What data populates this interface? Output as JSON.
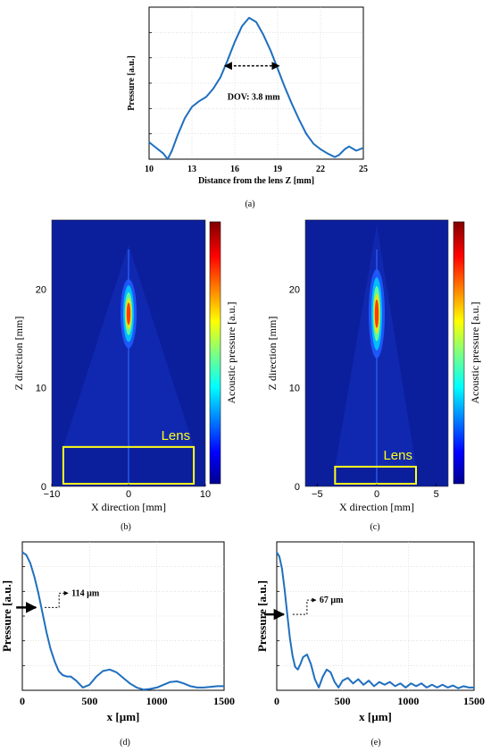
{
  "panel_labels": {
    "a": "(a)",
    "b": "(b)",
    "c": "(c)",
    "d": "(d)",
    "e": "(e)"
  },
  "colors": {
    "curve": "#1f6fbf",
    "map_background": "#0b1e9c",
    "lens_box": "#ffff1a",
    "grid": "#cfcfcf"
  },
  "chart_data": [
    {
      "id": "a",
      "type": "line",
      "xlabel": "Distance from the lens Z [mm]",
      "ylabel": "Pressure [a.u.]",
      "xlim": [
        10,
        25
      ],
      "ylim": [
        0,
        1
      ],
      "xticks": [
        "10",
        "13",
        "16",
        "19",
        "22",
        "25"
      ],
      "grid": true,
      "annotation": {
        "text": "DOV: 3.8 mm",
        "arrow_from_x": 15.3,
        "arrow_to_x": 19.1,
        "arrow_y": 0.66
      },
      "series": [
        {
          "x": [
            10,
            10.5,
            11,
            11.3,
            11.6,
            12,
            12.5,
            13,
            13.5,
            14,
            14.5,
            15,
            15.5,
            16,
            16.5,
            17,
            17.5,
            18,
            18.5,
            19,
            19.5,
            20,
            20.5,
            21,
            21.5,
            22,
            22.5,
            23,
            23.3,
            23.7,
            24,
            24.5,
            25
          ],
          "y": [
            0.12,
            0.08,
            0.04,
            0.0,
            0.06,
            0.17,
            0.29,
            0.37,
            0.41,
            0.44,
            0.5,
            0.58,
            0.7,
            0.83,
            0.94,
            1.0,
            0.97,
            0.88,
            0.77,
            0.64,
            0.51,
            0.39,
            0.28,
            0.18,
            0.11,
            0.07,
            0.04,
            0.015,
            0.03,
            0.07,
            0.09,
            0.06,
            0.08
          ]
        }
      ]
    },
    {
      "id": "b",
      "type": "heatmap",
      "xlabel": "X direction [mm]",
      "ylabel": "Z direction [mm]",
      "colorbar_label": "Acoustic pressure [a.u.]",
      "xlim": [
        -10,
        10
      ],
      "ylim": [
        0,
        27
      ],
      "xticks": [
        "-10",
        "0",
        "10"
      ],
      "yticks": [
        "0",
        "10",
        "20"
      ],
      "lens_label": "Lens",
      "focus": {
        "x": 0,
        "z": 17.5,
        "z_half_length": 3.5,
        "peak": 1.0
      },
      "lens_box": {
        "x0": -8.5,
        "x1": 8.5,
        "z0": 0,
        "z1": 4
      }
    },
    {
      "id": "c",
      "type": "heatmap",
      "xlabel": "X direction [mm]",
      "ylabel": "Z direction [mm]",
      "colorbar_label": "Acoustic pressure [a.u.]",
      "xlim": [
        -6,
        6
      ],
      "ylim": [
        0,
        27
      ],
      "xticks": [
        "-5",
        "0",
        "5"
      ],
      "yticks": [
        "0",
        "10",
        "20"
      ],
      "lens_label": "Lens",
      "focus": {
        "x": 0,
        "z": 17.5,
        "z_half_length": 4.5,
        "peak": 1.0
      },
      "lens_box": {
        "x0": -3.5,
        "x1": 3.3,
        "z0": 0,
        "z1": 2
      }
    },
    {
      "id": "d",
      "type": "line",
      "xlabel": "x [µm]",
      "ylabel": "Pressure [a.u.]",
      "xlim": [
        0,
        1500
      ],
      "ylim": [
        0,
        1
      ],
      "xticks": [
        "0",
        "500",
        "1000",
        "1500"
      ],
      "grid": true,
      "annotation": {
        "text": "114 µm",
        "marker_x": 114,
        "marker_y": 0.6
      },
      "series": [
        {
          "x": [
            0,
            30,
            60,
            90,
            120,
            150,
            180,
            210,
            240,
            270,
            300,
            330,
            360,
            400,
            450,
            500,
            550,
            600,
            650,
            700,
            750,
            800,
            850,
            900,
            950,
            1000,
            1050,
            1100,
            1150,
            1200,
            1250,
            1300,
            1350,
            1400,
            1450,
            1500
          ],
          "y": [
            1.0,
            0.98,
            0.92,
            0.82,
            0.7,
            0.56,
            0.42,
            0.3,
            0.21,
            0.14,
            0.11,
            0.1,
            0.1,
            0.07,
            0.02,
            0.04,
            0.1,
            0.14,
            0.15,
            0.13,
            0.09,
            0.05,
            0.02,
            0.005,
            0.01,
            0.02,
            0.04,
            0.06,
            0.065,
            0.05,
            0.03,
            0.02,
            0.02,
            0.025,
            0.03,
            0.03
          ]
        }
      ]
    },
    {
      "id": "e",
      "type": "line",
      "xlabel": "x [µm]",
      "ylabel": "Pressure [a.u.]",
      "xlim": [
        0,
        1500
      ],
      "ylim": [
        0,
        1
      ],
      "xticks": [
        "0",
        "500",
        "1000",
        "1500"
      ],
      "grid": true,
      "annotation": {
        "text": "67 µm",
        "marker_x": 67,
        "marker_y": 0.55
      },
      "series": [
        {
          "x": [
            0,
            20,
            40,
            60,
            80,
            100,
            120,
            140,
            160,
            180,
            200,
            230,
            260,
            290,
            320,
            350,
            380,
            410,
            440,
            470,
            500,
            540,
            580,
            620,
            660,
            700,
            740,
            780,
            820,
            860,
            900,
            940,
            980,
            1020,
            1060,
            1100,
            1140,
            1180,
            1220,
            1260,
            1300,
            1340,
            1380,
            1420,
            1460,
            1500
          ],
          "y": [
            1.0,
            0.97,
            0.88,
            0.73,
            0.55,
            0.38,
            0.25,
            0.17,
            0.15,
            0.19,
            0.24,
            0.26,
            0.19,
            0.08,
            0.02,
            0.1,
            0.15,
            0.13,
            0.06,
            0.02,
            0.07,
            0.09,
            0.05,
            0.08,
            0.04,
            0.07,
            0.03,
            0.06,
            0.04,
            0.06,
            0.03,
            0.05,
            0.02,
            0.05,
            0.03,
            0.05,
            0.02,
            0.04,
            0.02,
            0.04,
            0.02,
            0.035,
            0.015,
            0.03,
            0.02,
            0.02
          ]
        }
      ]
    }
  ]
}
